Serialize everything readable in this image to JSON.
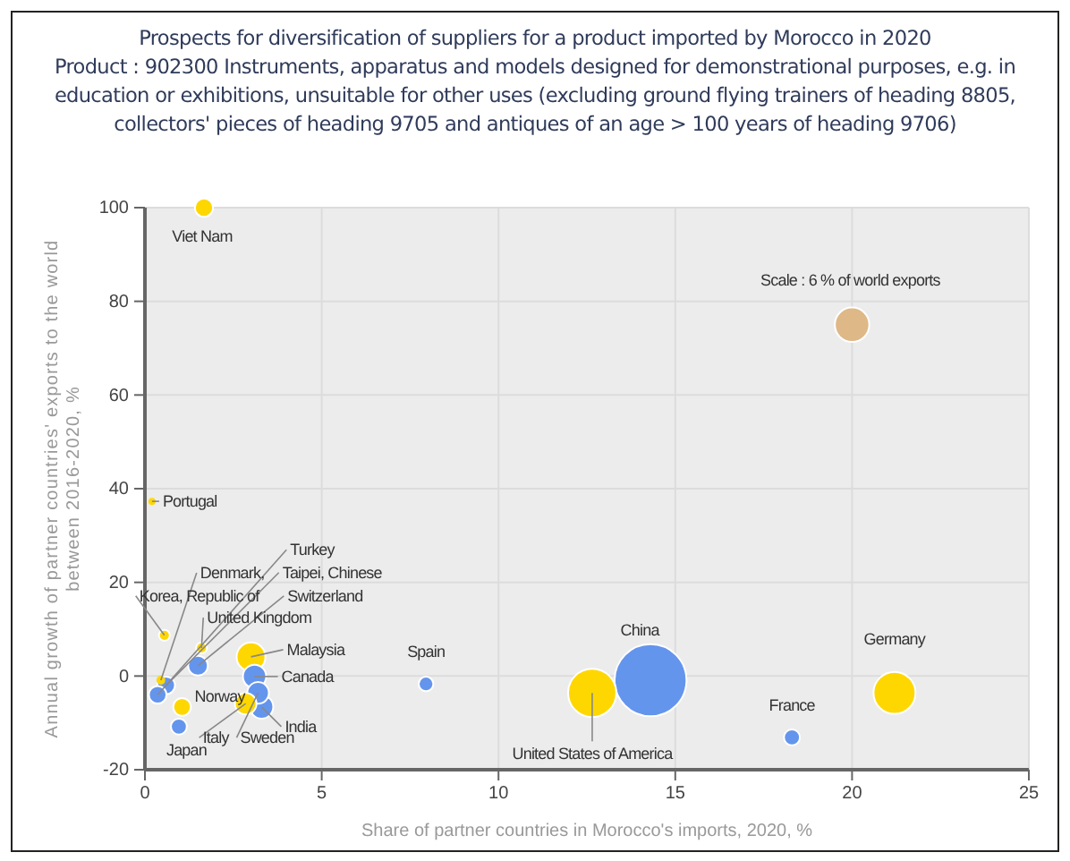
{
  "chart_data": {
    "type": "bubble",
    "title": "Prospects for diversification of suppliers for a product imported by Morocco in 2020",
    "subtitle": "Product : 902300 Instruments, apparatus and models designed for demonstrational purposes, e.g. in education or exhibitions, unsuitable for other uses (excluding ground flying trainers of heading 8805, collectors' pieces of heading 9705 and antiques of an age > 100 years of heading 9706)",
    "xlabel": "Share of partner countries in Morocco's imports, 2020, %",
    "ylabel": "Annual growth of partner countries' exports to the world between 2016-2020, %",
    "x": [
      1.67,
      0.2,
      0.55,
      0.45,
      0.6,
      0.36,
      1.5,
      1.6,
      3.0,
      3.1,
      3.2,
      3.3,
      2.85,
      1.05,
      0.96,
      7.95,
      12.65,
      14.3,
      18.3,
      21.2,
      20
    ],
    "values": [
      100,
      37.3,
      8.7,
      -0.9,
      -2,
      -4,
      2.2,
      6,
      4.1,
      -0.1,
      -3.6,
      -6.6,
      -5.9,
      -6.6,
      -10.8,
      -1.7,
      -3.6,
      -0.9,
      -13.1,
      -3.6,
      75
    ],
    "sizes": [
      0.064,
      0.004,
      0.023,
      0.015,
      0.06,
      0.06,
      0.075,
      0.023,
      0.16,
      0.105,
      0.09,
      0.105,
      0.09,
      0.06,
      0.049,
      0.041,
      0.45,
      1,
      0.049,
      0.34,
      0.23
    ],
    "colors": [
      "#ffd700",
      "#ffd700",
      "#ffd700",
      "#ffd700",
      "#6495ed",
      "#6495ed",
      "#6495ed",
      "#ffd700",
      "#ffd700",
      "#6495ed",
      "#6495ed",
      "#6495ed",
      "#ffd700",
      "#ffd700",
      "#6495ed",
      "#6495ed",
      "#ffd700",
      "#6495ed",
      "#6495ed",
      "#ffd700",
      "#deb887"
    ],
    "annotations": [
      {
        "text": "Viet Nam",
        "x": 1.67,
        "y": 100
      },
      {
        "text": "Portugal",
        "x": 0.2,
        "y": 37.3
      },
      {
        "text": "Korea, Republic of",
        "x": 0.55,
        "y": 8.7
      },
      {
        "text": "Denmark,",
        "x": 0.45,
        "y": -0.9
      },
      {
        "text": "Taipei, Chinese",
        "x": 0.6,
        "y": -2
      },
      {
        "text": "Turkey",
        "x": 0.36,
        "y": -4
      },
      {
        "text": "Switzerland",
        "x": 1.5,
        "y": 2.2
      },
      {
        "text": "United Kingdom",
        "x": 1.6,
        "y": 6
      },
      {
        "text": "Malaysia",
        "x": 3.0,
        "y": 4.1
      },
      {
        "text": "Canada",
        "x": 3.1,
        "y": -0.1
      },
      {
        "text": "Sweden",
        "x": 3.2,
        "y": -3.6
      },
      {
        "text": "India",
        "x": 3.3,
        "y": -6.6
      },
      {
        "text": "Italy",
        "x": 2.85,
        "y": -5.9
      },
      {
        "text": "Norway",
        "x": 1.05,
        "y": -6.6
      },
      {
        "text": "Japan",
        "x": 0.96,
        "y": -10.8
      },
      {
        "text": "Spain",
        "x": 7.95,
        "y": -1.7
      },
      {
        "text": "United States of America",
        "x": 12.65,
        "y": -3.6
      },
      {
        "text": "China",
        "x": 14.3,
        "y": -0.9
      },
      {
        "text": "France",
        "x": 18.3,
        "y": -13.1
      },
      {
        "text": "Germany",
        "x": 21.2,
        "y": -3.6
      },
      {
        "text": "Scale : 6 % of world exports",
        "x": 20,
        "y": 75
      }
    ],
    "xlim": [
      0,
      25
    ],
    "xticks": [
      0,
      5,
      10,
      15,
      20,
      25
    ],
    "ylim": [
      -20,
      100
    ],
    "yticks": [
      -20,
      0,
      20,
      40,
      60,
      80,
      100
    ],
    "grid": true
  }
}
